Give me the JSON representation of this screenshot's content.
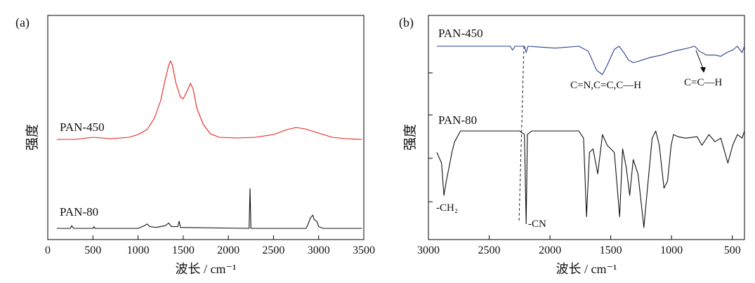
{
  "chart_data": [
    {
      "panel_label": "(a)",
      "type": "line",
      "xlabel": "波长 / cm⁻¹",
      "ylabel": "强度",
      "xlim": [
        0,
        3500
      ],
      "x_ticks": [
        0,
        500,
        1000,
        1500,
        2000,
        2500,
        3000,
        3500
      ],
      "series": [
        {
          "name": "PAN-450",
          "color": "#e8201a",
          "baseline": 0.0,
          "points": [
            [
              100,
              0.0
            ],
            [
              300,
              0.0
            ],
            [
              500,
              0.03
            ],
            [
              700,
              0.01
            ],
            [
              900,
              0.03
            ],
            [
              1000,
              0.07
            ],
            [
              1100,
              0.14
            ],
            [
              1180,
              0.3
            ],
            [
              1250,
              0.55
            ],
            [
              1300,
              0.85
            ],
            [
              1340,
              1.06
            ],
            [
              1360,
              1.12
            ],
            [
              1380,
              1.06
            ],
            [
              1420,
              0.8
            ],
            [
              1470,
              0.6
            ],
            [
              1500,
              0.58
            ],
            [
              1540,
              0.68
            ],
            [
              1580,
              0.8
            ],
            [
              1610,
              0.72
            ],
            [
              1650,
              0.45
            ],
            [
              1720,
              0.22
            ],
            [
              1800,
              0.08
            ],
            [
              1900,
              0.03
            ],
            [
              2100,
              0.02
            ],
            [
              2300,
              0.03
            ],
            [
              2500,
              0.07
            ],
            [
              2650,
              0.14
            ],
            [
              2750,
              0.17
            ],
            [
              2850,
              0.15
            ],
            [
              2950,
              0.11
            ],
            [
              3050,
              0.07
            ],
            [
              3150,
              0.03
            ],
            [
              3300,
              0.01
            ],
            [
              3480,
              0.0
            ]
          ]
        },
        {
          "name": "PAN-80",
          "color": "#111111",
          "points": [
            [
              100,
              0.0
            ],
            [
              250,
              0.0
            ],
            [
              265,
              0.03
            ],
            [
              285,
              0.0
            ],
            [
              500,
              0.0
            ],
            [
              510,
              0.02
            ],
            [
              525,
              0.0
            ],
            [
              1000,
              0.0
            ],
            [
              1070,
              0.03
            ],
            [
              1100,
              0.05
            ],
            [
              1130,
              0.02
            ],
            [
              1200,
              0.01
            ],
            [
              1300,
              0.03
            ],
            [
              1340,
              0.06
            ],
            [
              1370,
              0.02
            ],
            [
              1440,
              0.02
            ],
            [
              1455,
              0.08
            ],
            [
              1470,
              0.01
            ],
            [
              2230,
              0.0
            ],
            [
              2240,
              0.45
            ],
            [
              2250,
              0.0
            ],
            [
              2860,
              0.0
            ],
            [
              2880,
              0.04
            ],
            [
              2910,
              0.12
            ],
            [
              2935,
              0.15
            ],
            [
              2950,
              0.1
            ],
            [
              2980,
              0.08
            ],
            [
              3000,
              0.02
            ],
            [
              3050,
              0.0
            ],
            [
              3480,
              0.0
            ]
          ]
        }
      ]
    },
    {
      "panel_label": "(b)",
      "type": "line",
      "xlabel": "波长 / cm⁻¹",
      "ylabel": "强度",
      "xlim": [
        3000,
        400
      ],
      "x_ticks": [
        3000,
        2500,
        2000,
        1500,
        1000,
        500
      ],
      "series": [
        {
          "name": "PAN-450",
          "color": "#2a3f8f",
          "points": [
            [
              3000,
              0.0
            ],
            [
              2500,
              0.0
            ],
            [
              2380,
              0.0
            ],
            [
              2360,
              -0.06
            ],
            [
              2340,
              0.0
            ],
            [
              2260,
              0.0
            ],
            [
              2245,
              -0.1
            ],
            [
              2230,
              0.0
            ],
            [
              2000,
              -0.03
            ],
            [
              1800,
              0.0
            ],
            [
              1720,
              -0.08
            ],
            [
              1650,
              -0.38
            ],
            [
              1600,
              -0.45
            ],
            [
              1560,
              -0.3
            ],
            [
              1500,
              -0.05
            ],
            [
              1460,
              0.0
            ],
            [
              1420,
              -0.1
            ],
            [
              1380,
              -0.22
            ],
            [
              1340,
              -0.26
            ],
            [
              1300,
              -0.24
            ],
            [
              1200,
              -0.18
            ],
            [
              1100,
              -0.14
            ],
            [
              1000,
              -0.08
            ],
            [
              900,
              -0.04
            ],
            [
              820,
              0.0
            ],
            [
              780,
              -0.08
            ],
            [
              720,
              -0.14
            ],
            [
              650,
              -0.14
            ],
            [
              600,
              -0.16
            ],
            [
              550,
              -0.1
            ],
            [
              500,
              -0.06
            ],
            [
              460,
              0.0
            ],
            [
              420,
              -0.1
            ],
            [
              400,
              0.0
            ]
          ]
        },
        {
          "name": "PAN-80",
          "color": "#111111",
          "points": [
            [
              3000,
              -0.3
            ],
            [
              2960,
              -0.45
            ],
            [
              2940,
              -0.9
            ],
            [
              2920,
              -0.7
            ],
            [
              2870,
              -0.28
            ],
            [
              2850,
              -0.15
            ],
            [
              2800,
              0.0
            ],
            [
              2400,
              0.0
            ],
            [
              2300,
              0.0
            ],
            [
              2260,
              -0.05
            ],
            [
              2245,
              -1.3
            ],
            [
              2235,
              -0.05
            ],
            [
              2200,
              0.0
            ],
            [
              1800,
              0.0
            ],
            [
              1760,
              -0.1
            ],
            [
              1735,
              -1.2
            ],
            [
              1710,
              -0.3
            ],
            [
              1680,
              -0.25
            ],
            [
              1640,
              -0.6
            ],
            [
              1600,
              -0.05
            ],
            [
              1560,
              -0.2
            ],
            [
              1500,
              -0.3
            ],
            [
              1455,
              -1.2
            ],
            [
              1430,
              -0.25
            ],
            [
              1400,
              -0.5
            ],
            [
              1370,
              -0.9
            ],
            [
              1340,
              -0.4
            ],
            [
              1300,
              -0.6
            ],
            [
              1250,
              -1.35
            ],
            [
              1220,
              -0.8
            ],
            [
              1180,
              -0.1
            ],
            [
              1150,
              0.0
            ],
            [
              1120,
              -0.2
            ],
            [
              1080,
              -0.8
            ],
            [
              1050,
              -0.7
            ],
            [
              1020,
              -0.2
            ],
            [
              1000,
              -0.05
            ],
            [
              960,
              -0.08
            ],
            [
              900,
              -0.1
            ],
            [
              800,
              -0.08
            ],
            [
              760,
              -0.2
            ],
            [
              700,
              -0.05
            ],
            [
              650,
              -0.15
            ],
            [
              600,
              -0.1
            ],
            [
              540,
              -0.45
            ],
            [
              500,
              -0.2
            ],
            [
              460,
              -0.05
            ],
            [
              420,
              -0.1
            ],
            [
              400,
              0.0
            ]
          ]
        }
      ],
      "annotations": [
        "C=N,C=C,C—H",
        "C=C—H",
        "-CH₂",
        "-CN"
      ]
    }
  ]
}
